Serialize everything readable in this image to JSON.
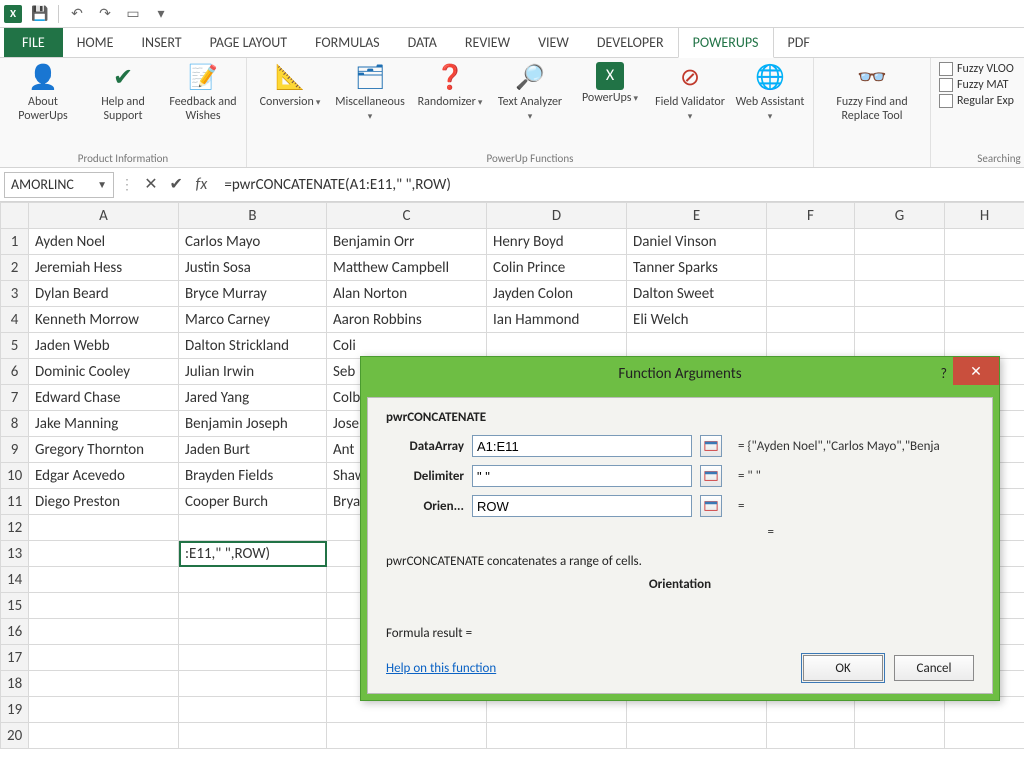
{
  "qat": {
    "save": "💾",
    "undo": "↶",
    "redo": "↷",
    "touch": "☝"
  },
  "tabs": {
    "file": "FILE",
    "home": "HOME",
    "insert": "INSERT",
    "page_layout": "PAGE LAYOUT",
    "formulas": "FORMULAS",
    "data": "DATA",
    "review": "REVIEW",
    "view": "VIEW",
    "developer": "DEVELOPER",
    "powerups": "POWERUPS",
    "pdf": "PDF",
    "active": "powerups"
  },
  "ribbon": {
    "groups": {
      "product_info": {
        "label": "Product Information",
        "items": [
          {
            "label": "About PowerUps",
            "icon": "👤"
          },
          {
            "label": "Help and Support",
            "icon": "✔@"
          },
          {
            "label": "Feedback and Wishes",
            "icon": "📝"
          }
        ]
      },
      "functions": {
        "label": "PowerUp Functions",
        "items": [
          {
            "label": "Conversion",
            "icon": "🔄",
            "drop": true
          },
          {
            "label": "Miscellaneous",
            "icon": "🗂",
            "drop": true
          },
          {
            "label": "Randomizer",
            "icon": "❓",
            "drop": true
          },
          {
            "label": "Text Analyzer",
            "icon": "🔎",
            "drop": true
          },
          {
            "label": "PowerUps",
            "icon": "X",
            "drop": true
          },
          {
            "label": "Field Validator",
            "icon": "⛔",
            "drop": true
          },
          {
            "label": "Web Assistant",
            "icon": "🌐",
            "drop": true
          }
        ]
      },
      "find": {
        "label": "",
        "items": [
          {
            "label": "Fuzzy Find and Replace Tool",
            "icon": "👓"
          }
        ]
      },
      "searching": {
        "label": "Searching",
        "small": [
          {
            "label": "Fuzzy VLOO"
          },
          {
            "label": "Fuzzy MAT"
          },
          {
            "label": "Regular Exp"
          }
        ]
      }
    }
  },
  "formula_bar": {
    "namebox": "AMORLINC",
    "formula": "=pwrCONCATENATE(A1:E11,\" \",ROW)"
  },
  "columns": [
    "A",
    "B",
    "C",
    "D",
    "E",
    "F",
    "G",
    "H"
  ],
  "rows": [
    "1",
    "2",
    "3",
    "4",
    "5",
    "6",
    "7",
    "8",
    "9",
    "10",
    "11",
    "12",
    "13",
    "14",
    "15",
    "16",
    "17",
    "18",
    "19",
    "20"
  ],
  "cells": {
    "1": [
      "Ayden Noel",
      "Carlos Mayo",
      "Benjamin Orr",
      "Henry Boyd",
      "Daniel Vinson",
      "",
      "",
      ""
    ],
    "2": [
      "Jeremiah Hess",
      "Justin Sosa",
      "Matthew Campbell",
      "Colin Prince",
      "Tanner Sparks",
      "",
      "",
      ""
    ],
    "3": [
      "Dylan Beard",
      "Bryce Murray",
      "Alan Norton",
      "Jayden Colon",
      "Dalton Sweet",
      "",
      "",
      ""
    ],
    "4": [
      "Kenneth Morrow",
      "Marco Carney",
      "Aaron Robbins",
      "Ian Hammond",
      "Eli Welch",
      "",
      "",
      ""
    ],
    "5": [
      "Jaden Webb",
      "Dalton Strickland",
      "Coli",
      "",
      "",
      "",
      "",
      ""
    ],
    "6": [
      "Dominic Cooley",
      "Julian Irwin",
      "Seb",
      "",
      "",
      "",
      "",
      ""
    ],
    "7": [
      "Edward Chase",
      "Jared Yang",
      "Colb",
      "",
      "",
      "",
      "",
      ""
    ],
    "8": [
      "Jake Manning",
      "Benjamin Joseph",
      "Jose",
      "",
      "",
      "",
      "",
      ""
    ],
    "9": [
      "Gregory Thornton",
      "Jaden Burt",
      "Ant",
      "",
      "",
      "",
      "",
      ""
    ],
    "10": [
      "Edgar Acevedo",
      "Brayden Fields",
      "Shaw",
      "",
      "",
      "",
      "",
      ""
    ],
    "11": [
      "Diego Preston",
      "Cooper Burch",
      "Brya",
      "",
      "",
      "",
      "",
      ""
    ],
    "12": [
      "",
      "",
      "",
      "",
      "",
      "",
      "",
      ""
    ],
    "13": [
      "",
      ":E11,\" \",ROW)",
      "",
      "",
      "",
      "",
      "",
      ""
    ],
    "14": [
      "",
      "",
      "",
      "",
      "",
      "",
      "",
      ""
    ],
    "15": [
      "",
      "",
      "",
      "",
      "",
      "",
      "",
      ""
    ],
    "16": [
      "",
      "",
      "",
      "",
      "",
      "",
      "",
      ""
    ],
    "17": [
      "",
      "",
      "",
      "",
      "",
      "",
      "",
      ""
    ],
    "18": [
      "",
      "",
      "",
      "",
      "",
      "",
      "",
      ""
    ],
    "19": [
      "",
      "",
      "",
      "",
      "",
      "",
      "",
      ""
    ],
    "20": [
      "",
      "",
      "",
      "",
      "",
      "",
      "",
      ""
    ]
  },
  "active_cell": "B13",
  "dialog": {
    "title": "Function Arguments",
    "fn_name": "pwrCONCATENATE",
    "args": [
      {
        "label": "DataArray",
        "value": "A1:E11",
        "preview": "{\"Ayden Noel\",\"Carlos Mayo\",\"Benja"
      },
      {
        "label": "Delimiter",
        "value": "\" \"",
        "preview": "\" \""
      },
      {
        "label": "Orien...",
        "value": "ROW",
        "preview": ""
      }
    ],
    "description": "pwrCONCATENATE concatenates a range of cells.",
    "current_arg": "Orientation",
    "result_label": "Formula result =",
    "help": "Help on this function",
    "ok": "OK",
    "cancel": "Cancel"
  },
  "colors": {
    "accent": "#217346",
    "dialog_border": "#6ebe44",
    "close": "#c94f3d",
    "link": "#0b62c4"
  }
}
